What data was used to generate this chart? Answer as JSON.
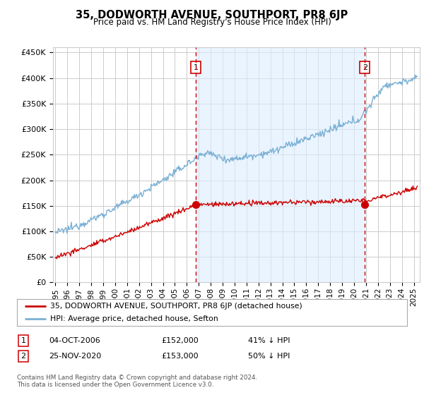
{
  "title": "35, DODWORTH AVENUE, SOUTHPORT, PR8 6JP",
  "subtitle": "Price paid vs. HM Land Registry's House Price Index (HPI)",
  "ylabel_ticks": [
    "£0",
    "£50K",
    "£100K",
    "£150K",
    "£200K",
    "£250K",
    "£300K",
    "£350K",
    "£400K",
    "£450K"
  ],
  "ytick_vals": [
    0,
    50000,
    100000,
    150000,
    200000,
    250000,
    300000,
    350000,
    400000,
    450000
  ],
  "ylim": [
    0,
    460000
  ],
  "xlim_start": 1994.8,
  "xlim_end": 2025.5,
  "marker1_x": 2006.75,
  "marker1_y": 152000,
  "marker2_x": 2020.9,
  "marker2_y": 153000,
  "legend_line1": "35, DODWORTH AVENUE, SOUTHPORT, PR8 6JP (detached house)",
  "legend_line2": "HPI: Average price, detached house, Sefton",
  "table_rows": [
    [
      "1",
      "04-OCT-2006",
      "£152,000",
      "41% ↓ HPI"
    ],
    [
      "2",
      "25-NOV-2020",
      "£153,000",
      "50% ↓ HPI"
    ]
  ],
  "footnote1": "Contains HM Land Registry data © Crown copyright and database right 2024.",
  "footnote2": "This data is licensed under the Open Government Licence v3.0.",
  "color_red": "#cc0000",
  "color_blue": "#7ab0d4",
  "color_shade": "#ddeeff",
  "color_grid": "#cccccc",
  "color_vline": "#cc0000",
  "background": "#ffffff"
}
